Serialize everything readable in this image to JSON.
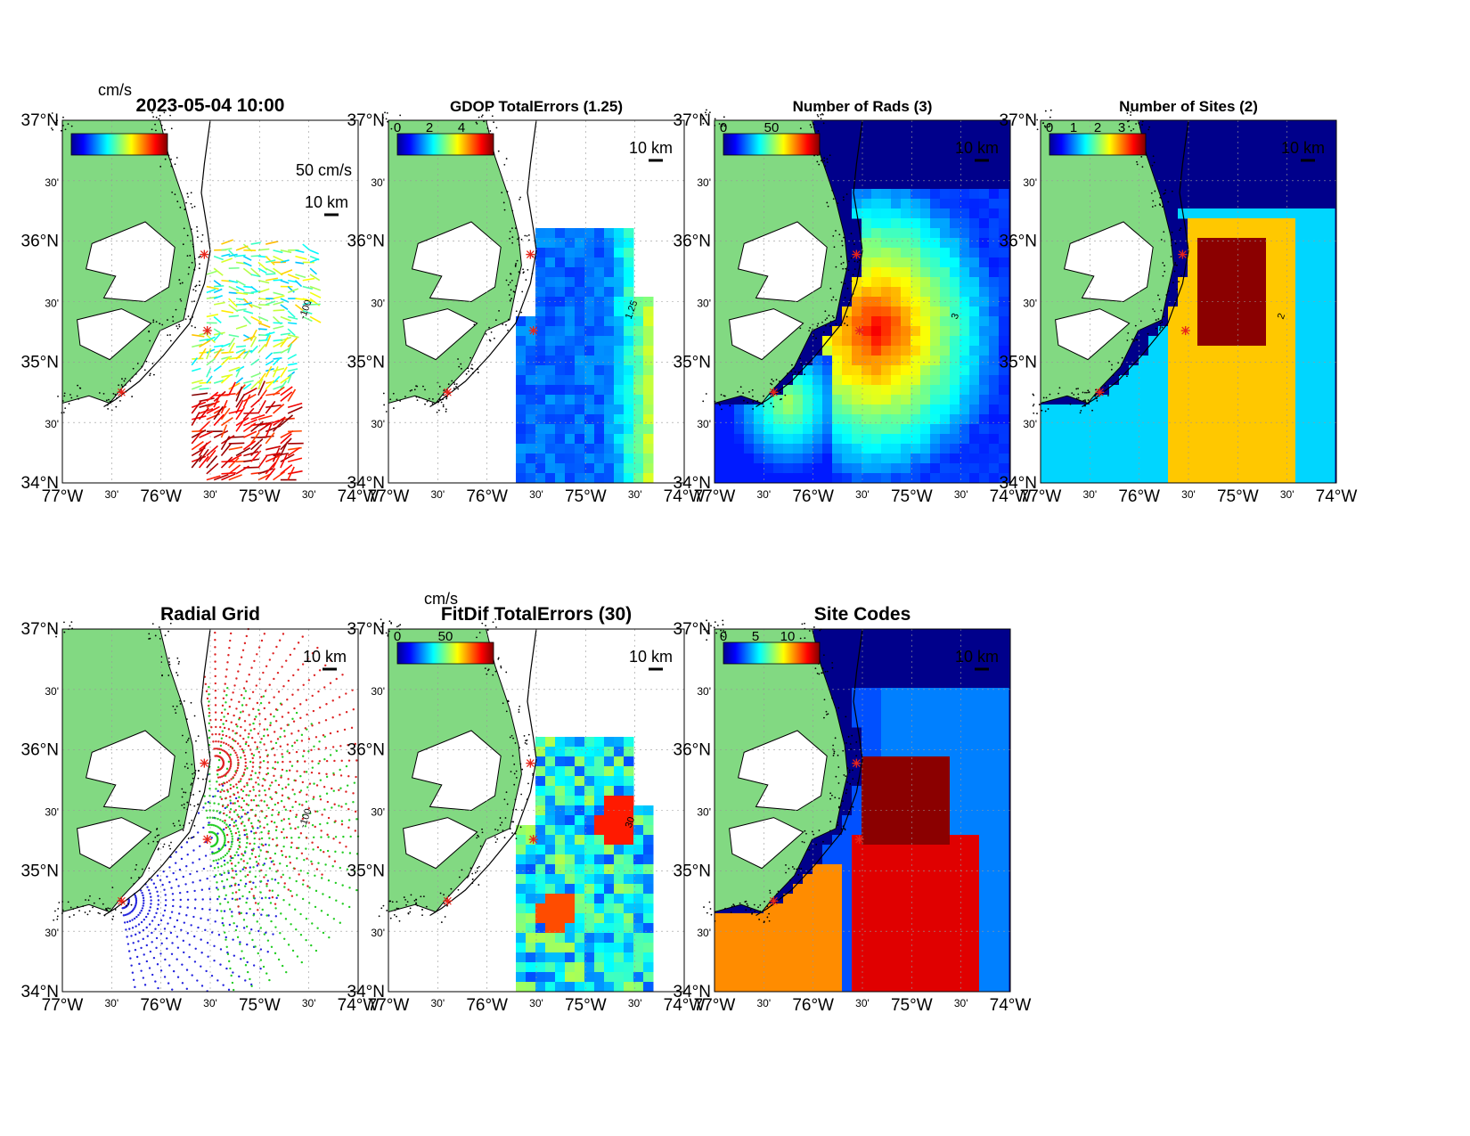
{
  "figure": {
    "axes": {
      "lon_ticks": [
        "77°W",
        "30'",
        "76°W",
        "30'",
        "75°W",
        "30'",
        "74°W"
      ],
      "lat_ticks": [
        "37°N",
        "30'",
        "36°N",
        "30'",
        "35°N",
        "30'",
        "34°N"
      ],
      "scale_label": "10 km"
    },
    "colors": {
      "land": "#82d982",
      "ocean_white": "#ffffff",
      "dark_blue": "#00008b",
      "site_marker": "#e8251a"
    }
  },
  "chart_data": [
    {
      "id": "currents",
      "type": "scatter",
      "title": "2023-05-04 10:00",
      "colorbar_unit": "cm/s",
      "vector_scale_label": "50 cm/s",
      "contour_label": "-100",
      "xlim": [
        -77,
        -74
      ],
      "ylim": [
        34,
        37
      ]
    },
    {
      "id": "gdop",
      "type": "heatmap",
      "title": "GDOP TotalErrors (1.25)",
      "colorbar_ticks": [
        "0",
        "2",
        "4"
      ],
      "contour_label": "1.25",
      "xlim": [
        -77,
        -74
      ],
      "ylim": [
        34,
        37
      ]
    },
    {
      "id": "nrads",
      "type": "heatmap",
      "title": "Number of Rads (3)",
      "colorbar_ticks": [
        "0",
        "50"
      ],
      "contour_label": "3",
      "xlim": [
        -77,
        -74
      ],
      "ylim": [
        34,
        37
      ]
    },
    {
      "id": "nsites",
      "type": "heatmap",
      "title": "Number of Sites (2)",
      "colorbar_ticks": [
        "0",
        "1",
        "2",
        "3"
      ],
      "contour_label": "2",
      "xlim": [
        -77,
        -74
      ],
      "ylim": [
        34,
        37
      ]
    },
    {
      "id": "radgrid",
      "type": "scatter",
      "title": "Radial Grid",
      "contour_label": "-100",
      "xlim": [
        -77,
        -74
      ],
      "ylim": [
        34,
        37
      ]
    },
    {
      "id": "fitdif",
      "type": "heatmap",
      "title": "FitDif TotalErrors (30)",
      "colorbar_unit": "cm/s",
      "colorbar_ticks": [
        "0",
        "50"
      ],
      "contour_label": "30",
      "xlim": [
        -77,
        -74
      ],
      "ylim": [
        34,
        37
      ]
    },
    {
      "id": "sitecodes",
      "type": "heatmap",
      "title": "Site Codes",
      "colorbar_ticks": [
        "0",
        "5",
        "10"
      ],
      "xlim": [
        -77,
        -74
      ],
      "ylim": [
        34,
        37
      ]
    }
  ]
}
